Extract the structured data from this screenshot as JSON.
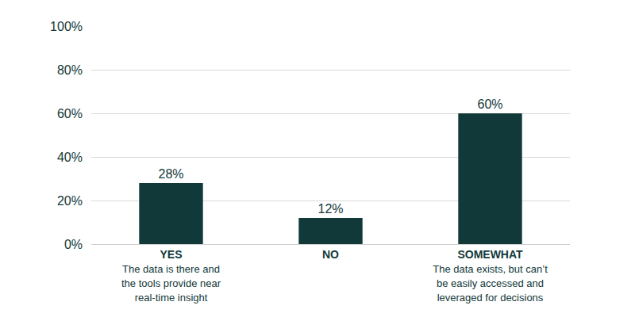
{
  "chart_data": {
    "type": "bar",
    "categories": [
      "YES",
      "NO",
      "SOMEWHAT"
    ],
    "descriptions": [
      "The data is there and\nthe tools provide near\nreal-time insight",
      null,
      "The data exists, but can’t\nbe easily accessed and\nleveraged for decisions"
    ],
    "values": [
      28,
      12,
      60
    ],
    "value_labels": [
      "28%",
      "12%",
      "60%"
    ],
    "color": "#12393a",
    "ylim": [
      0,
      100
    ],
    "yticks": [
      {
        "value": 0,
        "label": "0%"
      },
      {
        "value": 20,
        "label": "20%"
      },
      {
        "value": 40,
        "label": "40%"
      },
      {
        "value": 60,
        "label": "60%"
      },
      {
        "value": 80,
        "label": "80%"
      },
      {
        "value": 100,
        "label": "100%"
      }
    ],
    "grid": true,
    "data_labels": true
  }
}
